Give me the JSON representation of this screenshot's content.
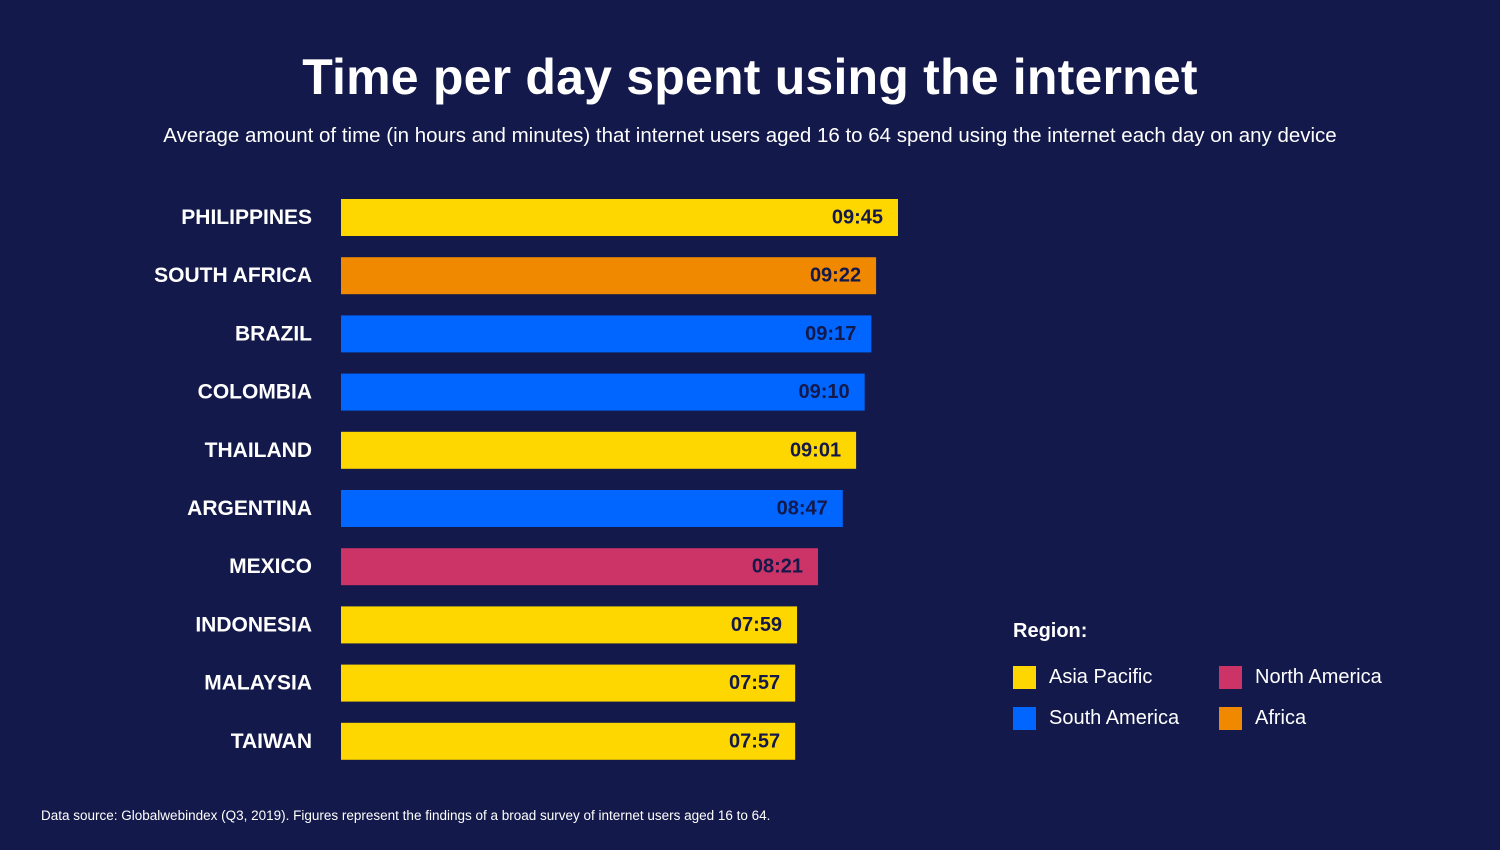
{
  "chart_data": {
    "type": "bar",
    "orientation": "horizontal",
    "title": "Time per day spent using the internet",
    "subtitle": "Average amount of time (in hours and minutes) that internet users aged 16 to 64 spend using the internet each day on any device",
    "categories": [
      "PHILIPPINES",
      "SOUTH AFRICA",
      "BRAZIL",
      "COLOMBIA",
      "THAILAND",
      "ARGENTINA",
      "MEXICO",
      "INDONESIA",
      "MALAYSIA",
      "TAIWAN"
    ],
    "value_labels": [
      "09:45",
      "09:22",
      "09:17",
      "09:10",
      "09:01",
      "08:47",
      "08:21",
      "07:59",
      "07:57",
      "07:57"
    ],
    "values_minutes": [
      585,
      562,
      557,
      550,
      541,
      527,
      501,
      479,
      477,
      477
    ],
    "regions": [
      "Asia Pacific",
      "Africa",
      "South America",
      "South America",
      "Asia Pacific",
      "South America",
      "North America",
      "Asia Pacific",
      "Asia Pacific",
      "Asia Pacific"
    ],
    "grid": false,
    "legend_position": "bottom-right",
    "legend": {
      "title": "Region:",
      "items": [
        {
          "name": "Asia Pacific",
          "color": "#ffd700"
        },
        {
          "name": "North America",
          "color": "#cc3366"
        },
        {
          "name": "South America",
          "color": "#0066ff"
        },
        {
          "name": "Africa",
          "color": "#f08800"
        }
      ]
    },
    "colors": {
      "Asia Pacific": "#ffd700",
      "North America": "#cc3366",
      "South America": "#0066ff",
      "Africa": "#f08800"
    }
  },
  "footnote": "Data source: Globalwebindex (Q3, 2019). Figures represent the findings of a broad survey of internet users aged 16 to 64.",
  "colors": {
    "background": "#13194a",
    "text": "#ffffff",
    "value_label": "#13194a"
  }
}
